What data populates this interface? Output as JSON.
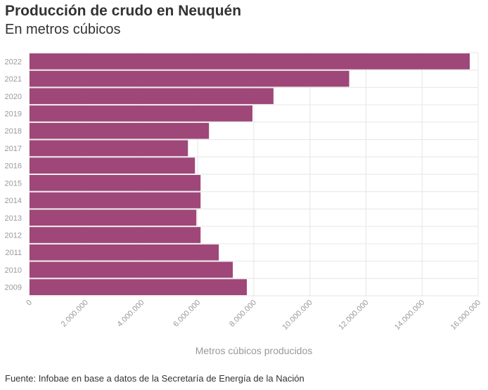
{
  "header": {
    "title": "Producción de crudo en Neuquén",
    "subtitle": "En metros cúbicos"
  },
  "footer": {
    "source": "Fuente: Infobae en base a datos de la Secretaría de Energía de la Nación"
  },
  "colors": {
    "bar": "#9e4778",
    "grid": "#e6e6e6",
    "tick": "#999999"
  },
  "chart_data": {
    "type": "bar",
    "orientation": "horizontal",
    "title": "Producción de crudo en Neuquén",
    "subtitle": "En metros cúbicos",
    "xlabel": "Metros cúbicos producidos",
    "ylabel": "",
    "xlim": [
      0,
      16000000
    ],
    "x_ticks": [
      0,
      2000000,
      4000000,
      6000000,
      8000000,
      10000000,
      12000000,
      14000000,
      16000000
    ],
    "x_tick_labels": [
      "0",
      "2.000.000",
      "4.000.000",
      "6.000.000",
      "8.000.000",
      "10.000.000",
      "12.000.000",
      "14.000.000",
      "16.000.000"
    ],
    "categories": [
      "2022",
      "2021",
      "2020",
      "2019",
      "2018",
      "2017",
      "2016",
      "2015",
      "2014",
      "2013",
      "2012",
      "2011",
      "2010",
      "2009"
    ],
    "values": [
      15700000,
      11400000,
      8700000,
      7950000,
      6400000,
      5650000,
      5900000,
      6100000,
      6100000,
      5950000,
      6100000,
      6750000,
      7250000,
      7750000
    ],
    "grid": true
  }
}
